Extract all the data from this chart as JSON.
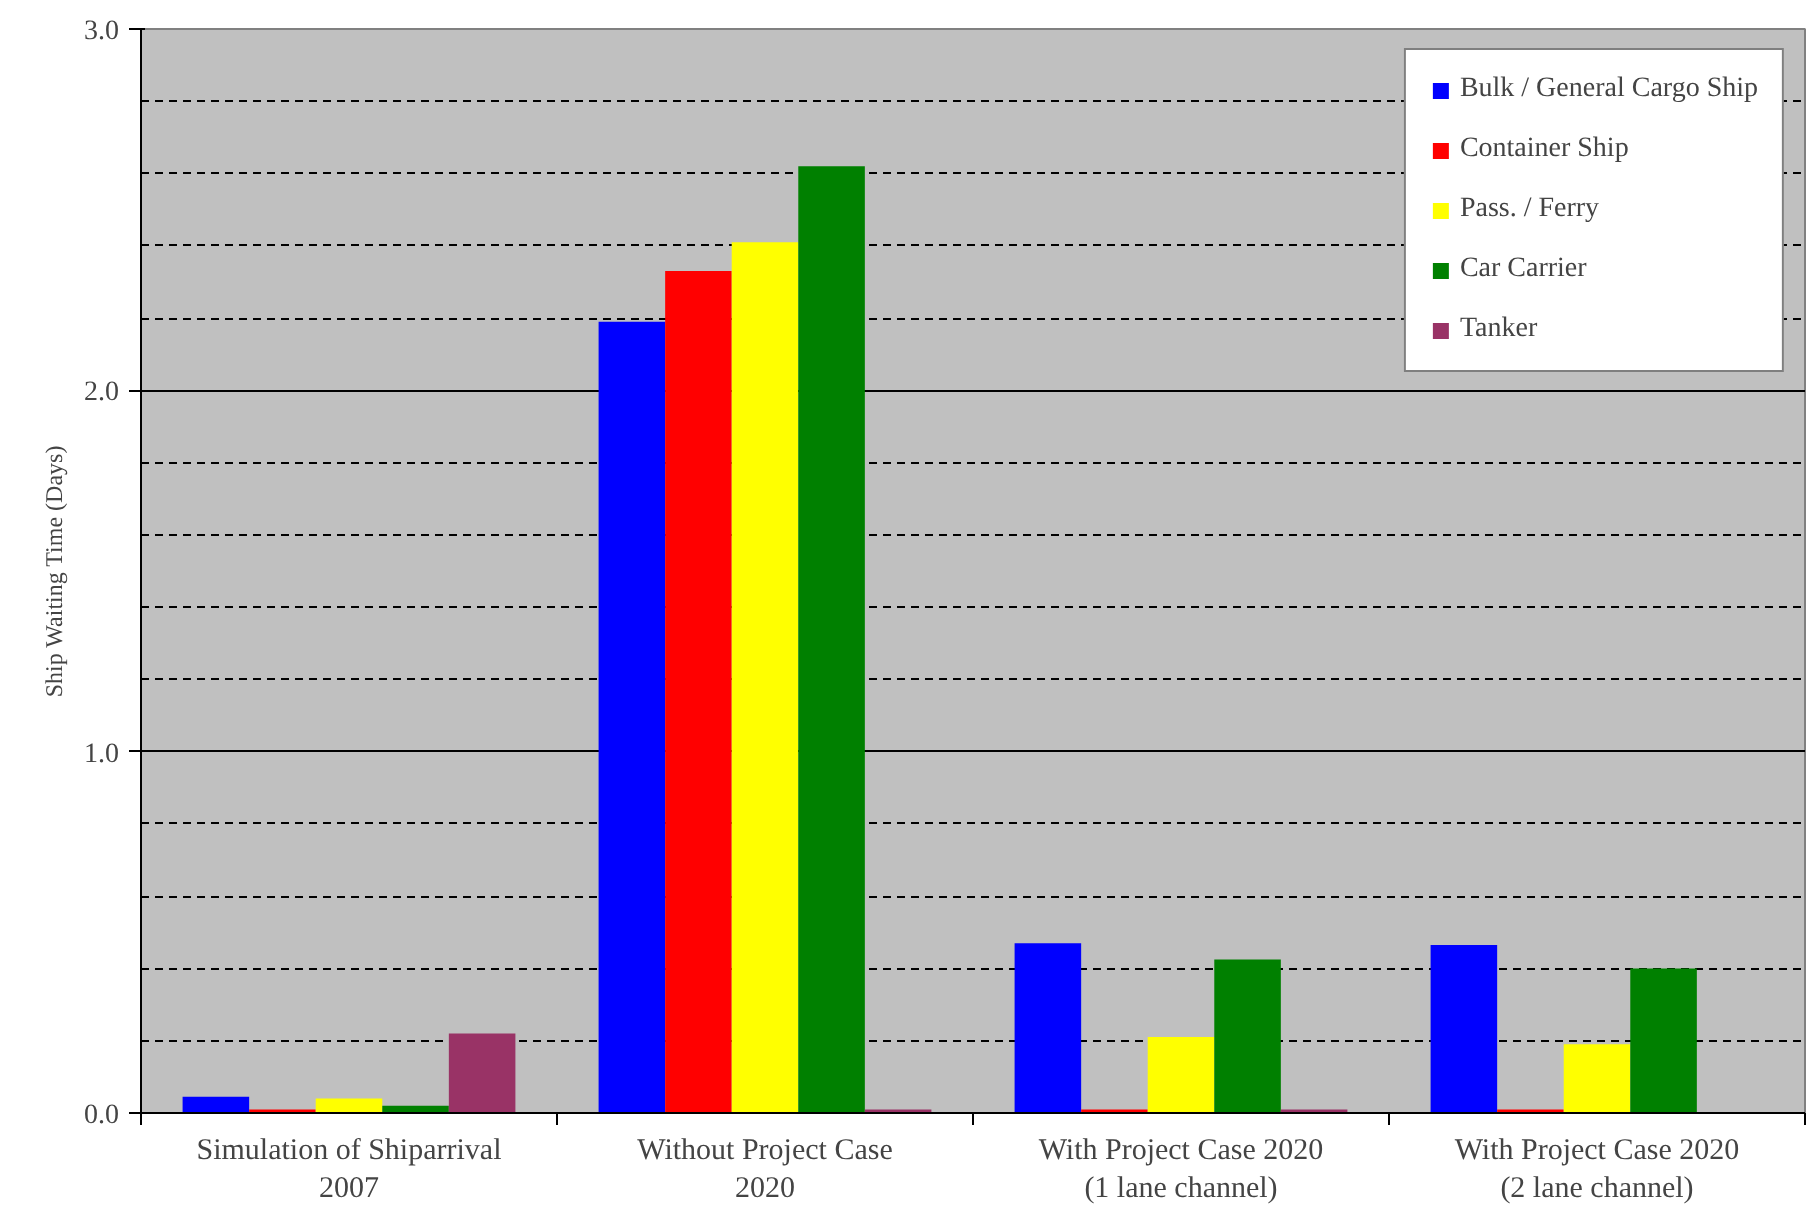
{
  "chart_data": {
    "type": "bar",
    "ylabel": "Ship Waiting Time (Days)",
    "categories": [
      "Simulation of Shiparrival\n2007",
      "Without Project Case\n2020",
      "With Project Case 2020\n(1 lane channel)",
      "With Project Case 2020\n(2 lane channel)"
    ],
    "series": [
      {
        "name": "Bulk / General Cargo Ship",
        "color": "#0000ff",
        "values": [
          0.045,
          2.19,
          0.47,
          0.465
        ]
      },
      {
        "name": "Container Ship",
        "color": "#ff0000",
        "values": [
          0.01,
          2.33,
          0.01,
          0.01
        ]
      },
      {
        "name": "Pass. / Ferry",
        "color": "#ffff00",
        "values": [
          0.04,
          2.41,
          0.21,
          0.19
        ]
      },
      {
        "name": "Car Carrier",
        "color": "#008000",
        "values": [
          0.02,
          2.62,
          0.425,
          0.4
        ]
      },
      {
        "name": "Tanker",
        "color": "#993366",
        "values": [
          0.22,
          0.01,
          0.01,
          null
        ]
      }
    ],
    "ylim": [
      0,
      3.0
    ],
    "yticks": [
      {
        "value": 0.0,
        "label": "0.0"
      },
      {
        "value": 0.2,
        "label": null
      },
      {
        "value": 0.4,
        "label": null
      },
      {
        "value": 0.6,
        "label": null
      },
      {
        "value": 0.8,
        "label": null
      },
      {
        "value": 1.0,
        "label": "1.0"
      },
      {
        "value": 1.2,
        "label": null
      },
      {
        "value": 1.4,
        "label": null
      },
      {
        "value": 1.6,
        "label": null
      },
      {
        "value": 1.8,
        "label": null
      },
      {
        "value": 2.0,
        "label": "2.0"
      },
      {
        "value": 2.2,
        "label": null
      },
      {
        "value": 2.4,
        "label": null
      },
      {
        "value": 2.6,
        "label": null
      },
      {
        "value": 2.8,
        "label": null
      },
      {
        "value": 3.0,
        "label": "3.0"
      }
    ],
    "grid": "y",
    "legend": "top right"
  }
}
